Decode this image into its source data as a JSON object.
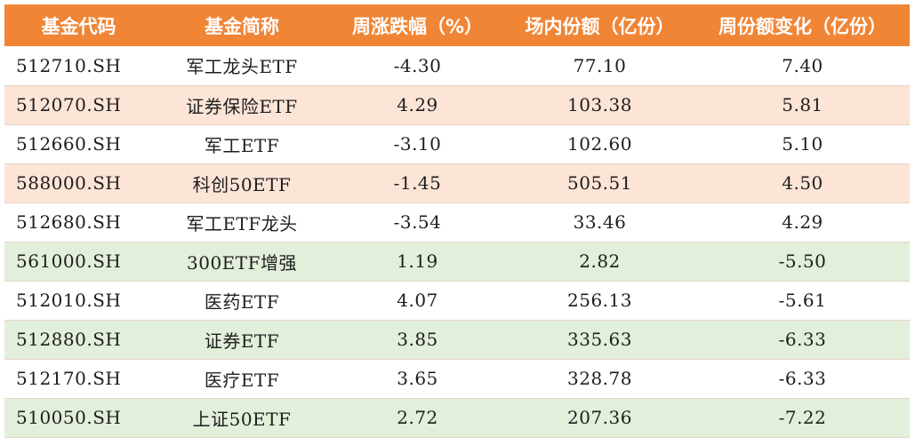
{
  "table": {
    "headers": [
      "基金代码",
      "基金简称",
      "周涨跌幅（%）",
      "场内份额（亿份）",
      "周份额变化（亿份）"
    ],
    "rows": [
      {
        "code": "512710.SH",
        "name": "军工龙头ETF",
        "weekly_change": "-4.30",
        "shares": "77.10",
        "share_change": "7.40",
        "highlight": "white"
      },
      {
        "code": "512070.SH",
        "name": "证券保险ETF",
        "weekly_change": "4.29",
        "shares": "103.38",
        "share_change": "5.81",
        "highlight": "peach"
      },
      {
        "code": "512660.SH",
        "name": "军工ETF",
        "weekly_change": "-3.10",
        "shares": "102.60",
        "share_change": "5.10",
        "highlight": "white"
      },
      {
        "code": "588000.SH",
        "name": "科创50ETF",
        "weekly_change": "-1.45",
        "shares": "505.51",
        "share_change": "4.50",
        "highlight": "peach"
      },
      {
        "code": "512680.SH",
        "name": "军工ETF龙头",
        "weekly_change": "-3.54",
        "shares": "33.46",
        "share_change": "4.29",
        "highlight": "white"
      },
      {
        "code": "561000.SH",
        "name": "300ETF增强",
        "weekly_change": "1.19",
        "shares": "2.82",
        "share_change": "-5.50",
        "highlight": "green"
      },
      {
        "code": "512010.SH",
        "name": "医药ETF",
        "weekly_change": "4.07",
        "shares": "256.13",
        "share_change": "-5.61",
        "highlight": "white"
      },
      {
        "code": "512880.SH",
        "name": "证券ETF",
        "weekly_change": "3.85",
        "shares": "335.63",
        "share_change": "-6.33",
        "highlight": "green"
      },
      {
        "code": "512170.SH",
        "name": "医疗ETF",
        "weekly_change": "3.65",
        "shares": "328.78",
        "share_change": "-6.33",
        "highlight": "white"
      },
      {
        "code": "510050.SH",
        "name": "上证50ETF",
        "weekly_change": "2.72",
        "shares": "207.36",
        "share_change": "-7.22",
        "highlight": "green"
      }
    ]
  },
  "colors": {
    "header_bg": "#f08536",
    "header_text": "#ffffff",
    "inflow_row": "#fce4d6",
    "outflow_row": "#e2efda"
  }
}
